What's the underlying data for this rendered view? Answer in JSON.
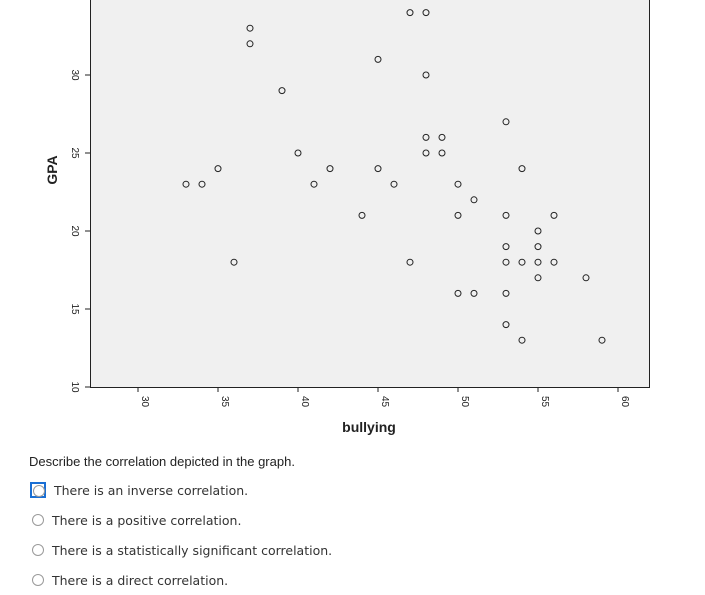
{
  "chart_data": {
    "type": "scatter",
    "xlabel": "bullying",
    "ylabel": "GPA",
    "xlim": [
      27,
      62
    ],
    "ylim": [
      10,
      35
    ],
    "x_ticks": [
      30,
      35,
      40,
      45,
      50,
      55,
      60
    ],
    "y_ticks": [
      10,
      15,
      20,
      25,
      30
    ],
    "y_tick_labels": [
      "10",
      "15",
      "20",
      "25",
      "30"
    ],
    "grid": false,
    "background": "#f0f0f0",
    "marker": "open-circle",
    "points": [
      [
        37,
        33
      ],
      [
        37,
        32
      ],
      [
        45,
        31
      ],
      [
        47,
        34
      ],
      [
        48,
        34
      ],
      [
        48,
        30
      ],
      [
        39,
        29
      ],
      [
        53,
        27
      ],
      [
        48,
        26
      ],
      [
        49,
        26
      ],
      [
        40,
        25
      ],
      [
        48,
        25
      ],
      [
        49,
        25
      ],
      [
        35,
        24
      ],
      [
        42,
        24
      ],
      [
        45,
        24
      ],
      [
        54,
        24
      ],
      [
        33,
        23
      ],
      [
        34,
        23
      ],
      [
        41,
        23
      ],
      [
        46,
        23
      ],
      [
        50,
        23
      ],
      [
        51,
        22
      ],
      [
        44,
        21
      ],
      [
        50,
        21
      ],
      [
        53,
        21
      ],
      [
        56,
        21
      ],
      [
        55,
        20
      ],
      [
        53,
        19
      ],
      [
        55,
        19
      ],
      [
        36,
        18
      ],
      [
        47,
        18
      ],
      [
        53,
        18
      ],
      [
        54,
        18
      ],
      [
        55,
        18
      ],
      [
        56,
        18
      ],
      [
        55,
        17
      ],
      [
        58,
        17
      ],
      [
        50,
        16
      ],
      [
        51,
        16
      ],
      [
        53,
        16
      ],
      [
        53,
        14
      ],
      [
        54,
        13
      ],
      [
        59,
        13
      ]
    ]
  },
  "question": {
    "prompt": "Describe the correlation depicted in the graph.",
    "options": [
      "There is an inverse correlation.",
      "There is a positive correlation.",
      "There is a statistically significant correlation.",
      "There is a direct correlation."
    ]
  }
}
